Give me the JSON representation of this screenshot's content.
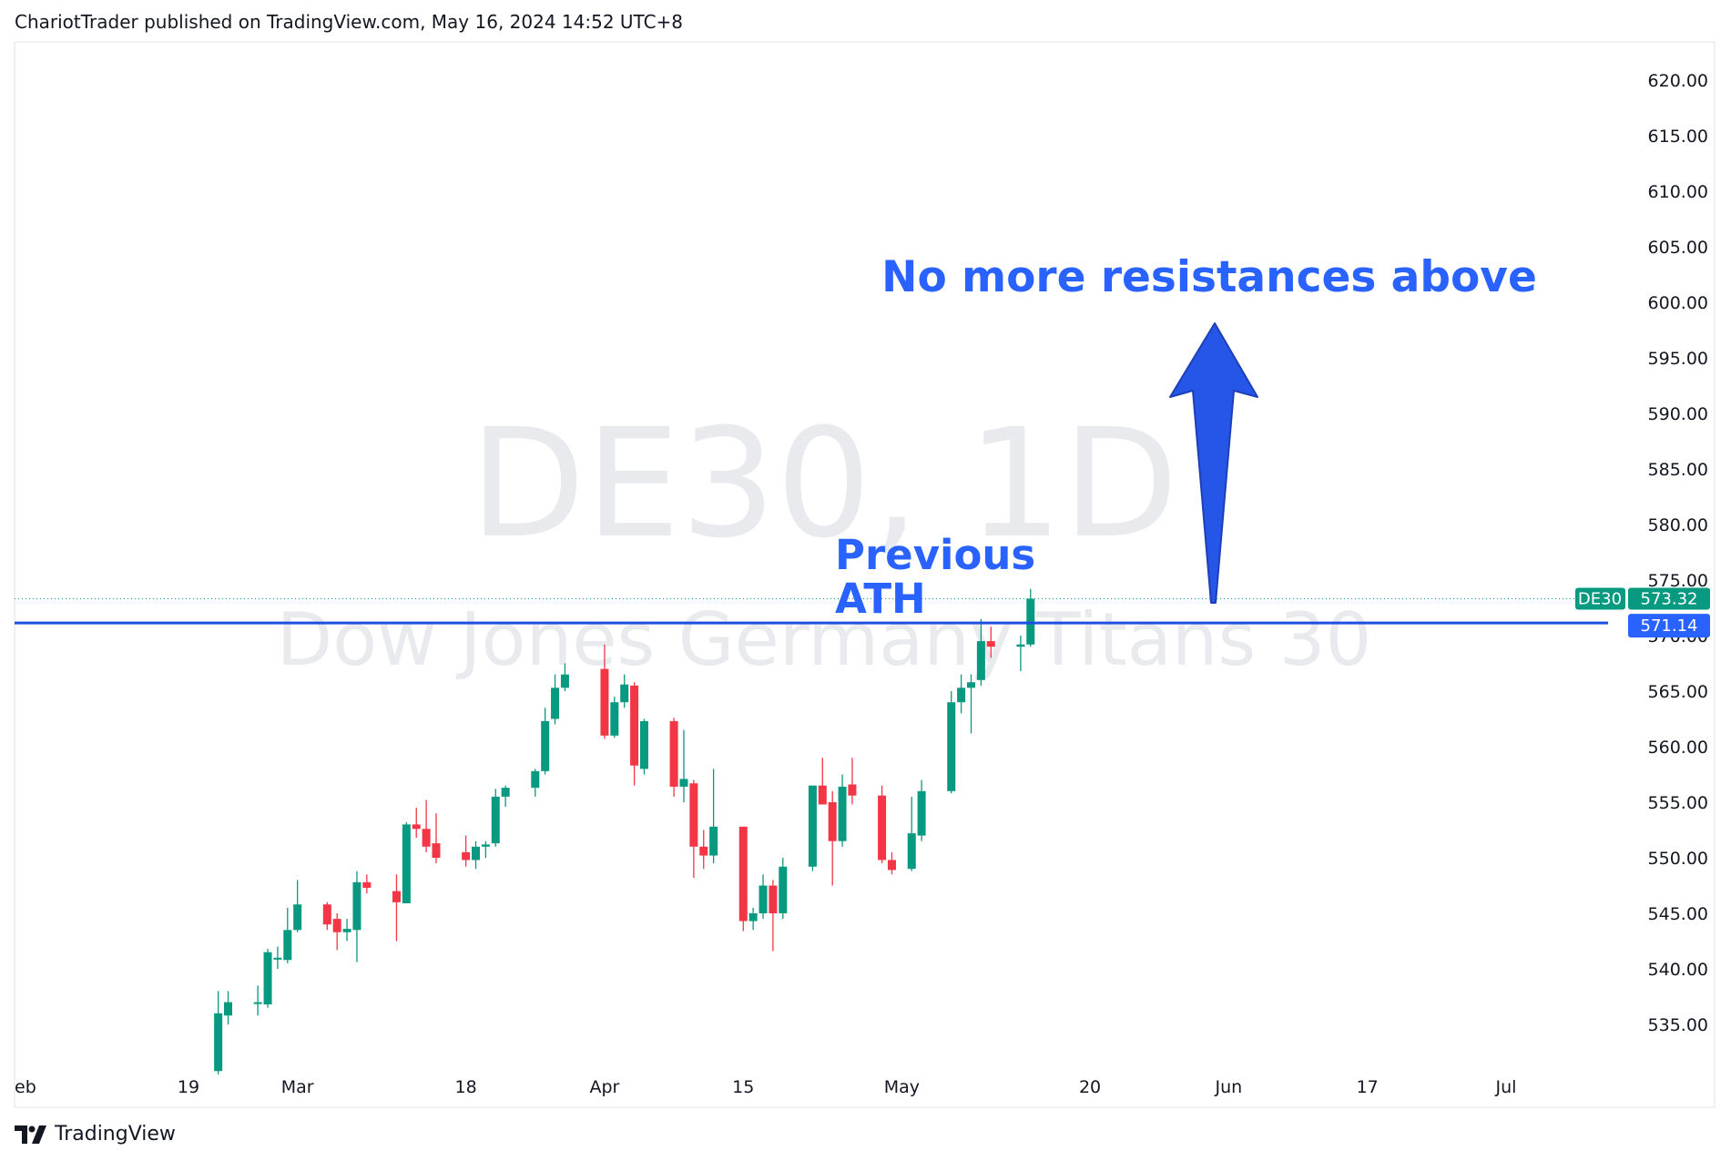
{
  "header": {
    "published_text": "ChariotTrader published on TradingView.com, May 16, 2024 14:52 UTC+8"
  },
  "footer": {
    "brand": "TradingView"
  },
  "watermark": {
    "symbol_line": "DE30, 1D",
    "name_line": "Dow Jones Germany Titans 30"
  },
  "annotations": {
    "headline": "No more resistances above",
    "level_label_line1": "Previous",
    "level_label_line2": "ATH"
  },
  "price_tags": {
    "symbol": "DE30",
    "last_price": "573.32",
    "level_price": "571.14"
  },
  "colors": {
    "up": "#089981",
    "down": "#f23645",
    "annotation_blue": "#2962ff",
    "arrow_blue": "#1e4fe0",
    "axis_text": "#131722",
    "watermark": "#e0e3eb"
  },
  "chart_data": {
    "type": "candlestick",
    "symbol": "DE30",
    "interval": "1D",
    "ylim": [
      530,
      625
    ],
    "y_ticks": [
      "535.00",
      "540.00",
      "545.00",
      "550.00",
      "555.00",
      "560.00",
      "565.00",
      "570.00",
      "575.00",
      "580.00",
      "585.00",
      "590.00",
      "595.00",
      "600.00",
      "605.00",
      "610.00",
      "615.00",
      "620.00"
    ],
    "x_ticks": [
      {
        "label": "eb",
        "date": "2024-02-12"
      },
      {
        "label": "19",
        "date": "2024-02-19"
      },
      {
        "label": "Mar",
        "date": "2024-03-01"
      },
      {
        "label": "18",
        "date": "2024-03-18"
      },
      {
        "label": "Apr",
        "date": "2024-04-01"
      },
      {
        "label": "15",
        "date": "2024-04-15"
      },
      {
        "label": "May",
        "date": "2024-05-01"
      },
      {
        "label": "20",
        "date": "2024-05-20"
      },
      {
        "label": "Jun",
        "date": "2024-06-03"
      },
      {
        "label": "17",
        "date": "2024-06-17"
      },
      {
        "label": "Jul",
        "date": "2024-07-01"
      }
    ],
    "horizontal_level": 571.14,
    "last_price": 573.32,
    "candles": [
      {
        "date": "2024-02-22",
        "o": 530.8,
        "h": 538.0,
        "l": 530.5,
        "c": 536.0
      },
      {
        "date": "2024-02-23",
        "o": 535.8,
        "h": 538.0,
        "l": 535.0,
        "c": 537.0
      },
      {
        "date": "2024-02-26",
        "o": 537.0,
        "h": 538.5,
        "l": 535.8,
        "c": 537.0
      },
      {
        "date": "2024-02-27",
        "o": 536.8,
        "h": 541.8,
        "l": 536.5,
        "c": 541.5
      },
      {
        "date": "2024-02-28",
        "o": 541.0,
        "h": 542.0,
        "l": 540.0,
        "c": 541.0
      },
      {
        "date": "2024-02-29",
        "o": 540.8,
        "h": 545.5,
        "l": 540.5,
        "c": 543.5
      },
      {
        "date": "2024-03-01",
        "o": 543.5,
        "h": 548.0,
        "l": 543.3,
        "c": 545.8
      },
      {
        "date": "2024-03-04",
        "o": 545.8,
        "h": 546.0,
        "l": 543.5,
        "c": 544.0
      },
      {
        "date": "2024-03-05",
        "o": 544.5,
        "h": 545.0,
        "l": 541.7,
        "c": 543.3
      },
      {
        "date": "2024-03-06",
        "o": 543.3,
        "h": 544.5,
        "l": 542.5,
        "c": 543.6
      },
      {
        "date": "2024-03-07",
        "o": 543.5,
        "h": 548.8,
        "l": 540.6,
        "c": 547.8
      },
      {
        "date": "2024-03-08",
        "o": 547.8,
        "h": 548.5,
        "l": 546.8,
        "c": 547.3
      },
      {
        "date": "2024-03-11",
        "o": 547.0,
        "h": 548.5,
        "l": 542.5,
        "c": 546.0
      },
      {
        "date": "2024-03-12",
        "o": 545.9,
        "h": 553.2,
        "l": 545.9,
        "c": 553.0
      },
      {
        "date": "2024-03-13",
        "o": 553.0,
        "h": 554.5,
        "l": 551.8,
        "c": 552.6
      },
      {
        "date": "2024-03-14",
        "o": 552.6,
        "h": 555.2,
        "l": 550.5,
        "c": 551.0
      },
      {
        "date": "2024-03-15",
        "o": 551.3,
        "h": 554.0,
        "l": 549.5,
        "c": 550.0
      },
      {
        "date": "2024-03-18",
        "o": 550.5,
        "h": 552.0,
        "l": 549.2,
        "c": 549.8
      },
      {
        "date": "2024-03-19",
        "o": 549.8,
        "h": 551.5,
        "l": 549.0,
        "c": 551.0
      },
      {
        "date": "2024-03-20",
        "o": 551.0,
        "h": 551.5,
        "l": 550.0,
        "c": 551.2
      },
      {
        "date": "2024-03-21",
        "o": 551.3,
        "h": 556.2,
        "l": 551.0,
        "c": 555.5
      },
      {
        "date": "2024-03-22",
        "o": 555.5,
        "h": 556.5,
        "l": 554.6,
        "c": 556.3
      },
      {
        "date": "2024-03-25",
        "o": 556.3,
        "h": 558.0,
        "l": 555.5,
        "c": 557.8
      },
      {
        "date": "2024-03-26",
        "o": 557.8,
        "h": 563.5,
        "l": 557.5,
        "c": 562.3
      },
      {
        "date": "2024-03-27",
        "o": 562.5,
        "h": 566.5,
        "l": 562.0,
        "c": 565.3
      },
      {
        "date": "2024-03-28",
        "o": 565.3,
        "h": 567.5,
        "l": 565.0,
        "c": 566.5
      },
      {
        "date": "2024-04-01",
        "o": 567.0,
        "h": 569.2,
        "l": 560.7,
        "c": 561.0
      },
      {
        "date": "2024-04-02",
        "o": 561.0,
        "h": 564.5,
        "l": 560.8,
        "c": 564.0
      },
      {
        "date": "2024-04-03",
        "o": 564.0,
        "h": 566.5,
        "l": 563.5,
        "c": 565.6
      },
      {
        "date": "2024-04-04",
        "o": 565.5,
        "h": 565.8,
        "l": 556.5,
        "c": 558.3
      },
      {
        "date": "2024-04-05",
        "o": 558.0,
        "h": 562.5,
        "l": 557.5,
        "c": 562.3
      },
      {
        "date": "2024-04-08",
        "o": 562.3,
        "h": 562.6,
        "l": 555.5,
        "c": 556.4
      },
      {
        "date": "2024-04-09",
        "o": 556.4,
        "h": 561.5,
        "l": 555.0,
        "c": 557.1
      },
      {
        "date": "2024-04-10",
        "o": 556.7,
        "h": 557.0,
        "l": 548.2,
        "c": 551.0
      },
      {
        "date": "2024-04-11",
        "o": 551.0,
        "h": 552.5,
        "l": 549.0,
        "c": 550.2
      },
      {
        "date": "2024-04-12",
        "o": 550.2,
        "h": 558.0,
        "l": 549.5,
        "c": 552.8
      },
      {
        "date": "2024-04-15",
        "o": 552.8,
        "h": 552.8,
        "l": 543.4,
        "c": 544.3
      },
      {
        "date": "2024-04-16",
        "o": 544.3,
        "h": 545.5,
        "l": 543.5,
        "c": 545.0
      },
      {
        "date": "2024-04-17",
        "o": 545.0,
        "h": 548.5,
        "l": 544.5,
        "c": 547.5
      },
      {
        "date": "2024-04-18",
        "o": 547.5,
        "h": 548.0,
        "l": 541.6,
        "c": 545.0
      },
      {
        "date": "2024-04-19",
        "o": 545.0,
        "h": 550.0,
        "l": 544.5,
        "c": 549.2
      },
      {
        "date": "2024-04-22",
        "o": 549.2,
        "h": 556.5,
        "l": 548.8,
        "c": 556.5
      },
      {
        "date": "2024-04-23",
        "o": 556.5,
        "h": 559.0,
        "l": 555.5,
        "c": 554.8
      },
      {
        "date": "2024-04-24",
        "o": 555.0,
        "h": 556.0,
        "l": 547.5,
        "c": 551.5
      },
      {
        "date": "2024-04-25",
        "o": 551.5,
        "h": 557.5,
        "l": 551.0,
        "c": 556.4
      },
      {
        "date": "2024-04-26",
        "o": 556.6,
        "h": 559.0,
        "l": 554.8,
        "c": 555.6
      },
      {
        "date": "2024-04-29",
        "o": 555.6,
        "h": 556.5,
        "l": 549.5,
        "c": 549.8
      },
      {
        "date": "2024-04-30",
        "o": 549.8,
        "h": 550.5,
        "l": 548.5,
        "c": 548.9
      },
      {
        "date": "2024-05-02",
        "o": 549.0,
        "h": 555.5,
        "l": 548.8,
        "c": 552.2
      },
      {
        "date": "2024-05-03",
        "o": 552.0,
        "h": 557.0,
        "l": 551.5,
        "c": 556.0
      },
      {
        "date": "2024-05-06",
        "o": 556.0,
        "h": 565.0,
        "l": 555.8,
        "c": 564.0
      },
      {
        "date": "2024-05-07",
        "o": 564.0,
        "h": 566.5,
        "l": 563.0,
        "c": 565.3
      },
      {
        "date": "2024-05-08",
        "o": 565.3,
        "h": 566.5,
        "l": 561.2,
        "c": 565.8
      },
      {
        "date": "2024-05-09",
        "o": 566.0,
        "h": 571.5,
        "l": 565.5,
        "c": 569.5
      },
      {
        "date": "2024-05-10",
        "o": 569.5,
        "h": 570.8,
        "l": 568.0,
        "c": 569.0
      },
      {
        "date": "2024-05-13",
        "o": 569.0,
        "h": 570.0,
        "l": 566.8,
        "c": 569.2
      },
      {
        "date": "2024-05-14",
        "o": 569.2,
        "h": 574.2,
        "l": 569.0,
        "c": 573.32
      }
    ]
  }
}
